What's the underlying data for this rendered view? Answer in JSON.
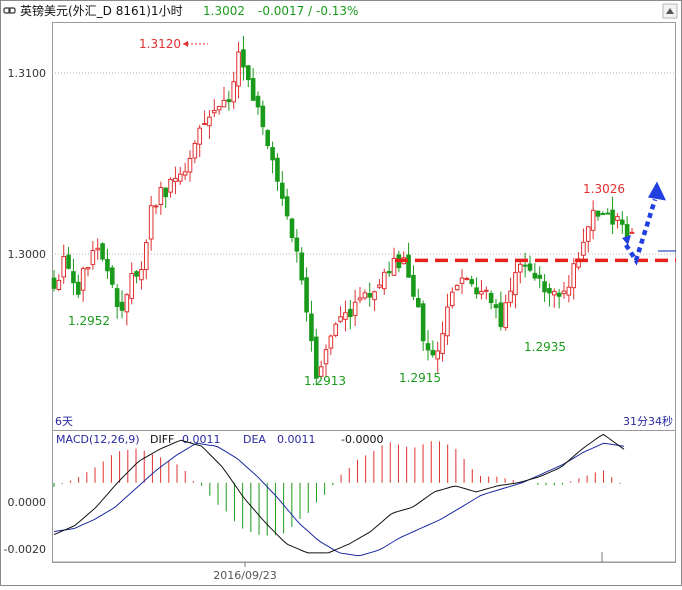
{
  "header": {
    "symbol_name": "英镑美元(外汇_D 8161)1小时",
    "last_price": "1.3002",
    "change": "-0.0017 / -0.13%"
  },
  "price_panel": {
    "period_label": "6天",
    "countdown": "31分34秒",
    "y_ticks": [
      "1.3100",
      "1.3000"
    ]
  },
  "macd_panel": {
    "label": "MACD(12,26,9)",
    "diff_label": "DIFF",
    "diff_value": "0.0011",
    "dea_label": "DEA",
    "dea_value": "0.0011",
    "macd_value": "-0.0000",
    "y_ticks": [
      "0.0000",
      "-0.0020"
    ]
  },
  "x_axis": {
    "date_label": "2016/09/23"
  },
  "colors": {
    "up": "#e03030",
    "down": "#1a9a1a",
    "annotation_line": "#e8201c",
    "arrow": "#1f3fe0",
    "dea": "#1a2aa0",
    "diff": "#111111"
  },
  "chart_data": {
    "type": "candlestick",
    "timeframe": "1 hour",
    "ylim": [
      1.2876,
      1.314
    ],
    "annotations": [
      {
        "text": "1.3120",
        "value": 1.312,
        "kind": "high"
      },
      {
        "text": "1.2952",
        "value": 1.2952,
        "kind": "low"
      },
      {
        "text": "1.2913",
        "value": 1.2913,
        "kind": "low"
      },
      {
        "text": "1.2915",
        "value": 1.2915,
        "kind": "low"
      },
      {
        "text": "1.2935",
        "value": 1.2935,
        "kind": "low"
      },
      {
        "text": "1.3026",
        "value": 1.3026,
        "kind": "high"
      }
    ],
    "horizontal_line": {
      "value": 1.2986,
      "style": "dashed"
    },
    "arrow": {
      "from": 1.2996,
      "via": 1.2986,
      "to": 1.3032,
      "style": "dotted"
    },
    "price_anchors": [
      1.2972,
      1.2985,
      1.2962,
      1.2985,
      1.2992,
      1.2982,
      1.2952,
      1.2972,
      1.2982,
      1.3022,
      1.303,
      1.3038,
      1.3048,
      1.3062,
      1.3077,
      1.3083,
      1.309,
      1.312,
      1.3096,
      1.3082,
      1.3052,
      1.302,
      1.3,
      1.296,
      1.2912,
      1.2932,
      1.2942,
      1.2952,
      1.2962,
      1.2966,
      1.2972,
      1.2982,
      1.2986,
      1.2966,
      1.2932,
      1.2922,
      1.295,
      1.297,
      1.2972,
      1.2968,
      1.296,
      1.2942,
      1.2972,
      1.2985,
      1.298,
      1.297,
      1.2962,
      1.297,
      1.2985,
      1.3012,
      1.3018,
      1.3015,
      1.301,
      1.3
    ],
    "macd_ylim": [
      -0.0026,
      0.0017
    ],
    "macd_anchors": [
      -0.0017,
      -0.0014,
      -0.0008,
      0.0,
      0.0007,
      0.0011,
      0.0014,
      0.0012,
      0.0005,
      -0.0005,
      -0.0013,
      -0.002,
      -0.0023,
      -0.0023,
      -0.002,
      -0.0016,
      -0.001,
      -0.0008,
      -0.0003,
      -0.0001,
      -0.0003,
      -0.0001,
      0.0,
      0.0002,
      0.0005,
      0.0011,
      0.0016,
      0.0011
    ],
    "dea_anchors": [
      -0.0016,
      -0.0015,
      -0.0012,
      -0.0008,
      -0.0002,
      0.0004,
      0.0009,
      0.0013,
      0.0012,
      0.0008,
      0.0002,
      -0.0005,
      -0.0013,
      -0.0019,
      -0.0023,
      -0.0024,
      -0.0022,
      -0.0018,
      -0.0015,
      -0.0012,
      -0.0008,
      -0.0004,
      -0.0002,
      0.0,
      0.0003,
      0.0006,
      0.001,
      0.0013,
      0.0012
    ]
  }
}
